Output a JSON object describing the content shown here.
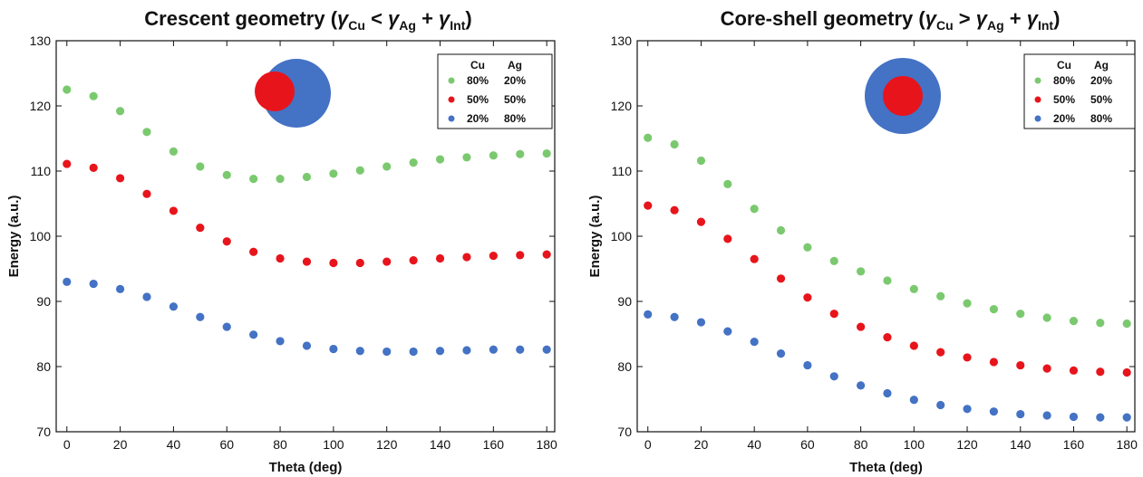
{
  "colors": {
    "green": "#7bc96f",
    "red": "#e8141b",
    "blue": "#4472c4"
  },
  "legend": {
    "headers": [
      "Cu",
      "Ag"
    ],
    "rows": [
      {
        "cu": "80%",
        "ag": "20%",
        "color": "#7bc96f"
      },
      {
        "cu": "50%",
        "ag": "50%",
        "color": "#e8141b"
      },
      {
        "cu": "20%",
        "ag": "80%",
        "color": "#4472c4"
      }
    ]
  },
  "chart_data": [
    {
      "type": "scatter",
      "title_main": "Crescent geometry (",
      "title_math": {
        "g1": "γ",
        "s1": "Cu",
        "op": " < ",
        "g2": "γ",
        "s2": "Ag",
        "plus": " + ",
        "g3": "γ",
        "s3": "Int",
        "close": ")"
      },
      "xlabel": "Theta (deg)",
      "ylabel": "Energy (a.u.)",
      "xlim": [
        -4,
        183
      ],
      "ylim": [
        70,
        130
      ],
      "xticks": [
        0,
        20,
        40,
        60,
        80,
        100,
        120,
        140,
        160,
        180
      ],
      "yticks": [
        70,
        80,
        90,
        100,
        110,
        120,
        130
      ],
      "inset": "crescent",
      "x": [
        0,
        10,
        20,
        30,
        40,
        50,
        60,
        70,
        80,
        90,
        100,
        110,
        120,
        130,
        140,
        150,
        160,
        170,
        180
      ],
      "series": [
        {
          "label": "80% Cu / 20% Ag",
          "color": "#7bc96f",
          "values": [
            122.5,
            121.5,
            119.2,
            116.0,
            113.0,
            110.7,
            109.4,
            108.8,
            108.8,
            109.1,
            109.6,
            110.1,
            110.7,
            111.3,
            111.8,
            112.1,
            112.4,
            112.6,
            112.7
          ]
        },
        {
          "label": "50% Cu / 50% Ag",
          "color": "#e8141b",
          "values": [
            111.1,
            110.5,
            108.9,
            106.5,
            103.9,
            101.3,
            99.2,
            97.6,
            96.6,
            96.1,
            95.9,
            95.9,
            96.1,
            96.3,
            96.6,
            96.8,
            97.0,
            97.1,
            97.2
          ]
        },
        {
          "label": "20% Cu / 80% Ag",
          "color": "#4472c4",
          "values": [
            93.0,
            92.7,
            91.9,
            90.7,
            89.2,
            87.6,
            86.1,
            84.9,
            83.9,
            83.2,
            82.7,
            82.4,
            82.3,
            82.3,
            82.4,
            82.5,
            82.6,
            82.6,
            82.6
          ]
        }
      ]
    },
    {
      "type": "scatter",
      "title_main": "Core-shell geometry (",
      "title_math": {
        "g1": "γ",
        "s1": "Cu",
        "op": " > ",
        "g2": "γ",
        "s2": "Ag",
        "plus": " + ",
        "g3": "γ",
        "s3": "Int",
        "close": ")"
      },
      "xlabel": "Theta (deg)",
      "ylabel": "Energy (a.u.)",
      "xlim": [
        -4,
        183
      ],
      "ylim": [
        70,
        130
      ],
      "xticks": [
        0,
        20,
        40,
        60,
        80,
        100,
        120,
        140,
        160,
        180
      ],
      "yticks": [
        70,
        80,
        90,
        100,
        110,
        120,
        130
      ],
      "inset": "core-shell",
      "x": [
        0,
        10,
        20,
        30,
        40,
        50,
        60,
        70,
        80,
        90,
        100,
        110,
        120,
        130,
        140,
        150,
        160,
        170,
        180
      ],
      "series": [
        {
          "label": "80% Cu / 20% Ag",
          "color": "#7bc96f",
          "values": [
            115.1,
            114.1,
            111.6,
            108.0,
            104.2,
            100.9,
            98.3,
            96.2,
            94.6,
            93.2,
            91.9,
            90.8,
            89.7,
            88.8,
            88.1,
            87.5,
            87.0,
            86.7,
            86.6
          ]
        },
        {
          "label": "50% Cu / 50% Ag",
          "color": "#e8141b",
          "values": [
            104.7,
            104.0,
            102.2,
            99.6,
            96.5,
            93.5,
            90.6,
            88.1,
            86.1,
            84.5,
            83.2,
            82.2,
            81.4,
            80.7,
            80.2,
            79.7,
            79.4,
            79.2,
            79.1
          ]
        },
        {
          "label": "20% Cu / 80% Ag",
          "color": "#4472c4",
          "values": [
            88.0,
            87.6,
            86.8,
            85.4,
            83.8,
            82.0,
            80.2,
            78.5,
            77.1,
            75.9,
            74.9,
            74.1,
            73.5,
            73.1,
            72.7,
            72.5,
            72.3,
            72.2,
            72.2
          ]
        }
      ]
    }
  ]
}
